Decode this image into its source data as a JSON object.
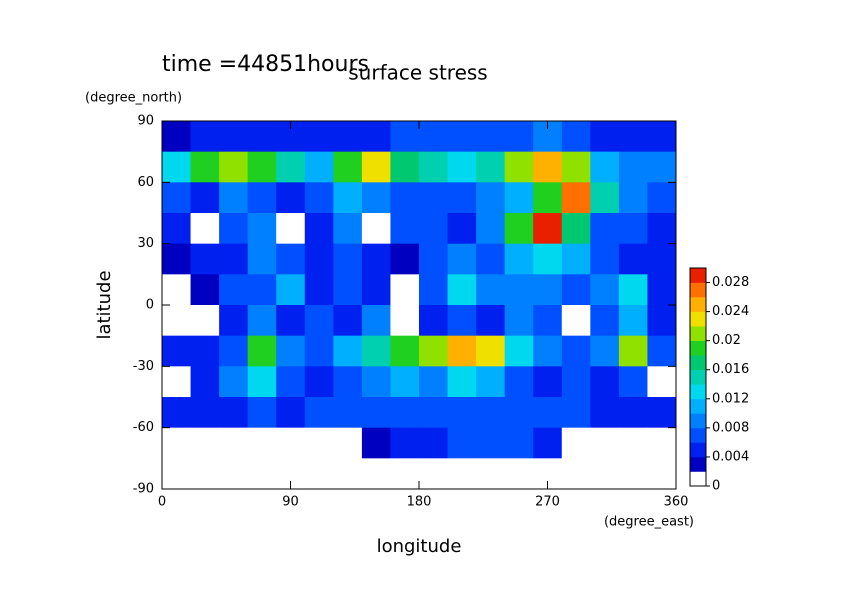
{
  "chart_data": {
    "type": "heatmap",
    "title": "surface stress",
    "subtitle": "time =44851hours",
    "x_label": "longitude",
    "x_unit": "(degree_east)",
    "y_label": "latitude",
    "y_unit": "(degree_north)",
    "xlim": [
      0,
      360
    ],
    "xticks": [
      0,
      90,
      180,
      270,
      360
    ],
    "ylim": [
      -90,
      90
    ],
    "yticks": [
      90,
      60,
      30,
      0,
      -30,
      -60,
      -90
    ],
    "x_edges": [
      0,
      20,
      40,
      60,
      80,
      100,
      120,
      140,
      160,
      180,
      200,
      220,
      240,
      260,
      280,
      300,
      320,
      340,
      360
    ],
    "y_edges": [
      90,
      75,
      60,
      45,
      30,
      15,
      0,
      -15,
      -30,
      -45,
      -60,
      -75,
      -90
    ],
    "z": [
      [
        0.003,
        0.004,
        0.004,
        0.004,
        0.005,
        0.004,
        0.004,
        0.005,
        0.006,
        0.006,
        0.006,
        0.006,
        0.007,
        0.008,
        0.006,
        0.005,
        0.004,
        0.004
      ],
      [
        0.012,
        0.018,
        0.02,
        0.019,
        0.014,
        0.01,
        0.018,
        0.022,
        0.016,
        0.014,
        0.012,
        0.014,
        0.02,
        0.024,
        0.02,
        0.01,
        0.008,
        0.008
      ],
      [
        0.006,
        0.004,
        0.008,
        0.006,
        0.005,
        0.006,
        0.01,
        0.008,
        0.006,
        0.006,
        0.006,
        0.008,
        0.01,
        0.018,
        0.026,
        0.014,
        0.008,
        0.006
      ],
      [
        0.004,
        0,
        0.006,
        0.008,
        0,
        0.004,
        0.008,
        0,
        0.006,
        0.006,
        0.004,
        0.008,
        0.018,
        0.028,
        0.016,
        0.006,
        0.006,
        0.005
      ],
      [
        0.003,
        0.004,
        0.004,
        0.008,
        0.006,
        0.004,
        0.006,
        0.004,
        0.002,
        0.006,
        0.008,
        0.006,
        0.01,
        0.012,
        0.01,
        0.006,
        0.005,
        0.004
      ],
      [
        0,
        0.002,
        0.006,
        0.006,
        0.01,
        0.004,
        0.006,
        0.004,
        0,
        0.006,
        0.012,
        0.008,
        0.008,
        0.008,
        0.006,
        0.008,
        0.012,
        0.004
      ],
      [
        0,
        0,
        0.004,
        0.008,
        0.004,
        0.006,
        0.004,
        0.008,
        0,
        0.004,
        0.006,
        0.004,
        0.008,
        0.006,
        0,
        0.006,
        0.01,
        0.004
      ],
      [
        0.004,
        0.004,
        0.006,
        0.018,
        0.008,
        0.006,
        0.01,
        0.014,
        0.018,
        0.02,
        0.024,
        0.022,
        0.012,
        0.008,
        0.006,
        0.008,
        0.02,
        0.006
      ],
      [
        0,
        0.004,
        0.008,
        0.012,
        0.006,
        0.004,
        0.006,
        0.008,
        0.01,
        0.008,
        0.012,
        0.01,
        0.006,
        0.004,
        0.006,
        0.004,
        0.006,
        0
      ],
      [
        0.004,
        0.004,
        0.004,
        0.006,
        0.004,
        0.006,
        0.006,
        0.006,
        0.006,
        0.006,
        0.006,
        0.006,
        0.006,
        0.006,
        0.006,
        0.004,
        0.004,
        0.004
      ],
      [
        0,
        0,
        0,
        0,
        0,
        0,
        0,
        0.002,
        0.004,
        0.004,
        0.006,
        0.006,
        0.006,
        0.004,
        0,
        0,
        0,
        0
      ],
      [
        0,
        0,
        0,
        0,
        0,
        0,
        0,
        0,
        0,
        0,
        0,
        0,
        0,
        0,
        0,
        0,
        0,
        0
      ]
    ],
    "colorbar": {
      "lim": [
        0,
        0.03
      ],
      "ticks": [
        0,
        0.004,
        0.008,
        0.012,
        0.016,
        0.02,
        0.024,
        0.028
      ],
      "colors": [
        "#ffffff",
        "#0000c0",
        "#0020f0",
        "#0050ff",
        "#0080ff",
        "#00b0ff",
        "#00d8f0",
        "#00d0b0",
        "#00c870",
        "#20d020",
        "#90e000",
        "#f0e000",
        "#ffb000",
        "#ff7000",
        "#e82000"
      ]
    }
  }
}
